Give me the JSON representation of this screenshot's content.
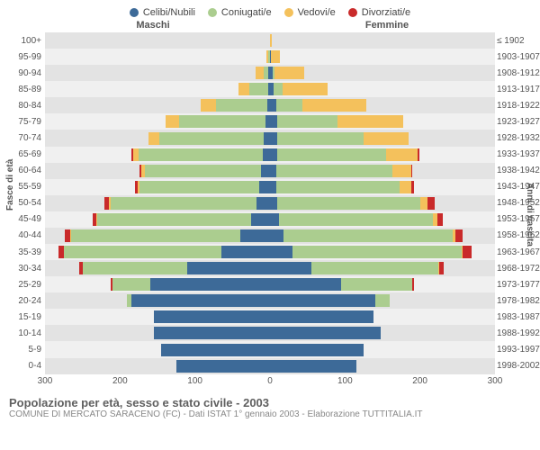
{
  "legend": [
    {
      "label": "Celibi/Nubili",
      "color": "#3d6a98"
    },
    {
      "label": "Coniugati/e",
      "color": "#abcd8f"
    },
    {
      "label": "Vedovi/e",
      "color": "#f4c15c"
    },
    {
      "label": "Divorziati/e",
      "color": "#c92a2a"
    }
  ],
  "headers": {
    "left": "Maschi",
    "right": "Femmine"
  },
  "axis_titles": {
    "left": "Fasce di età",
    "right": "Anni di nascita"
  },
  "x_max": 300,
  "x_ticks": [
    300,
    200,
    100,
    0,
    100,
    200,
    300
  ],
  "colors": {
    "single": "#3d6a98",
    "married": "#abcd8f",
    "widowed": "#f4c15c",
    "divorced": "#c92a2a",
    "row_odd": "#f0f0f0",
    "row_even": "#e3e3e3",
    "grid": "#ffffff",
    "center": "#aaaaaa",
    "title": "#606060",
    "sub": "#888888"
  },
  "gridlines_pct": [
    16.67,
    33.33,
    66.67,
    83.33
  ],
  "rows": [
    {
      "age": "100+",
      "birth": "≤ 1902",
      "m": {
        "s": 0,
        "c": 0,
        "w": 0,
        "d": 0
      },
      "f": {
        "s": 0,
        "c": 0,
        "w": 2,
        "d": 0
      }
    },
    {
      "age": "95-99",
      "birth": "1903-1907",
      "m": {
        "s": 0,
        "c": 2,
        "w": 3,
        "d": 0
      },
      "f": {
        "s": 1,
        "c": 0,
        "w": 12,
        "d": 0
      }
    },
    {
      "age": "90-94",
      "birth": "1908-1912",
      "m": {
        "s": 2,
        "c": 7,
        "w": 10,
        "d": 0
      },
      "f": {
        "s": 3,
        "c": 3,
        "w": 40,
        "d": 0
      }
    },
    {
      "age": "85-89",
      "birth": "1913-1917",
      "m": {
        "s": 3,
        "c": 25,
        "w": 14,
        "d": 0
      },
      "f": {
        "s": 5,
        "c": 12,
        "w": 60,
        "d": 0
      }
    },
    {
      "age": "80-84",
      "birth": "1918-1922",
      "m": {
        "s": 4,
        "c": 68,
        "w": 20,
        "d": 0
      },
      "f": {
        "s": 8,
        "c": 35,
        "w": 85,
        "d": 0
      }
    },
    {
      "age": "75-79",
      "birth": "1923-1927",
      "m": {
        "s": 6,
        "c": 115,
        "w": 18,
        "d": 0
      },
      "f": {
        "s": 10,
        "c": 80,
        "w": 88,
        "d": 0
      }
    },
    {
      "age": "70-74",
      "birth": "1928-1932",
      "m": {
        "s": 8,
        "c": 140,
        "w": 14,
        "d": 0
      },
      "f": {
        "s": 10,
        "c": 115,
        "w": 60,
        "d": 0
      }
    },
    {
      "age": "65-69",
      "birth": "1933-1937",
      "m": {
        "s": 10,
        "c": 165,
        "w": 8,
        "d": 2
      },
      "f": {
        "s": 10,
        "c": 145,
        "w": 42,
        "d": 2
      }
    },
    {
      "age": "60-64",
      "birth": "1938-1942",
      "m": {
        "s": 12,
        "c": 155,
        "w": 5,
        "d": 2
      },
      "f": {
        "s": 8,
        "c": 155,
        "w": 25,
        "d": 2
      }
    },
    {
      "age": "55-59",
      "birth": "1943-1947",
      "m": {
        "s": 14,
        "c": 160,
        "w": 3,
        "d": 3
      },
      "f": {
        "s": 8,
        "c": 165,
        "w": 15,
        "d": 4
      }
    },
    {
      "age": "50-54",
      "birth": "1948-1952",
      "m": {
        "s": 18,
        "c": 195,
        "w": 2,
        "d": 6
      },
      "f": {
        "s": 10,
        "c": 190,
        "w": 10,
        "d": 10
      }
    },
    {
      "age": "45-49",
      "birth": "1953-1957",
      "m": {
        "s": 25,
        "c": 205,
        "w": 2,
        "d": 5
      },
      "f": {
        "s": 12,
        "c": 205,
        "w": 6,
        "d": 8
      }
    },
    {
      "age": "40-44",
      "birth": "1958-1962",
      "m": {
        "s": 40,
        "c": 225,
        "w": 1,
        "d": 8
      },
      "f": {
        "s": 18,
        "c": 225,
        "w": 4,
        "d": 10
      }
    },
    {
      "age": "35-39",
      "birth": "1963-1967",
      "m": {
        "s": 65,
        "c": 210,
        "w": 0,
        "d": 7
      },
      "f": {
        "s": 30,
        "c": 225,
        "w": 2,
        "d": 12
      }
    },
    {
      "age": "30-34",
      "birth": "1968-1972",
      "m": {
        "s": 110,
        "c": 140,
        "w": 0,
        "d": 4
      },
      "f": {
        "s": 55,
        "c": 170,
        "w": 1,
        "d": 6
      }
    },
    {
      "age": "25-29",
      "birth": "1973-1977",
      "m": {
        "s": 160,
        "c": 50,
        "w": 0,
        "d": 2
      },
      "f": {
        "s": 95,
        "c": 95,
        "w": 0,
        "d": 2
      }
    },
    {
      "age": "20-24",
      "birth": "1978-1982",
      "m": {
        "s": 185,
        "c": 6,
        "w": 0,
        "d": 0
      },
      "f": {
        "s": 140,
        "c": 20,
        "w": 0,
        "d": 0
      }
    },
    {
      "age": "15-19",
      "birth": "1983-1987",
      "m": {
        "s": 155,
        "c": 0,
        "w": 0,
        "d": 0
      },
      "f": {
        "s": 138,
        "c": 0,
        "w": 0,
        "d": 0
      }
    },
    {
      "age": "10-14",
      "birth": "1988-1992",
      "m": {
        "s": 155,
        "c": 0,
        "w": 0,
        "d": 0
      },
      "f": {
        "s": 148,
        "c": 0,
        "w": 0,
        "d": 0
      }
    },
    {
      "age": "5-9",
      "birth": "1993-1997",
      "m": {
        "s": 145,
        "c": 0,
        "w": 0,
        "d": 0
      },
      "f": {
        "s": 125,
        "c": 0,
        "w": 0,
        "d": 0
      }
    },
    {
      "age": "0-4",
      "birth": "1998-2002",
      "m": {
        "s": 125,
        "c": 0,
        "w": 0,
        "d": 0
      },
      "f": {
        "s": 115,
        "c": 0,
        "w": 0,
        "d": 0
      }
    }
  ],
  "caption": {
    "title": "Popolazione per età, sesso e stato civile - 2003",
    "sub": "COMUNE DI MERCATO SARACENO (FC) - Dati ISTAT 1° gennaio 2003 - Elaborazione TUTTITALIA.IT"
  }
}
